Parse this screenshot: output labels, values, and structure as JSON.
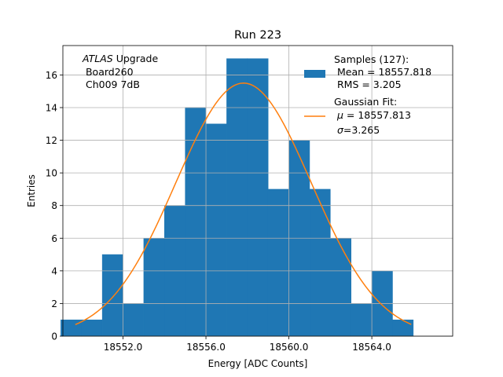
{
  "chart_data": {
    "type": "bar",
    "title": "Run 223",
    "xlabel": "Energy [ADC Counts]",
    "ylabel": "Entries",
    "xlim": [
      18549.1,
      18567.9
    ],
    "ylim": [
      0,
      17.8
    ],
    "xticks": [
      18552.0,
      18556.0,
      18560.0,
      18564.0
    ],
    "xtick_labels": [
      "18552.0",
      "18556.0",
      "18560.0",
      "18564.0"
    ],
    "yticks": [
      0,
      2,
      4,
      6,
      8,
      10,
      12,
      14,
      16
    ],
    "ytick_labels": [
      "0",
      "2",
      "4",
      "6",
      "8",
      "10",
      "12",
      "14",
      "16"
    ],
    "grid": true,
    "annotation": {
      "line1_italic": "ATLAS",
      "line1_rest": " Upgrade",
      "line2": " Board260",
      "line3": " Ch009 7dB"
    },
    "histogram": {
      "name": "Samples (127):",
      "color": "#1f77b4",
      "bin_edges": [
        18549.0,
        18550.0,
        18551.0,
        18552.0,
        18553.0,
        18554.0,
        18555.0,
        18556.0,
        18557.0,
        18558.0,
        18559.0,
        18560.0,
        18561.0,
        18562.0,
        18563.0,
        18564.0,
        18565.0,
        18566.0
      ],
      "counts": [
        1,
        1,
        5,
        2,
        6,
        8,
        14,
        13,
        17,
        17,
        9,
        12,
        9,
        6,
        2,
        4,
        1
      ]
    },
    "fit": {
      "name": "Gaussian Fit:",
      "color": "#ff7f0e",
      "mu": 18557.813,
      "sigma": 3.265,
      "amplitude": 15.5,
      "x_range": [
        18549.7,
        18565.9
      ]
    },
    "legend": {
      "position": "top-right",
      "samples_title": "Samples (127):",
      "samples_mean": " Mean = 18557.818",
      "samples_rms": " RMS = 3.205",
      "fit_title": "Gaussian Fit:",
      "fit_mu_symbol": "μ",
      "fit_mu_value": " = 18557.813",
      "fit_sigma_symbol": "σ",
      "fit_sigma_value": "=3.265"
    }
  }
}
